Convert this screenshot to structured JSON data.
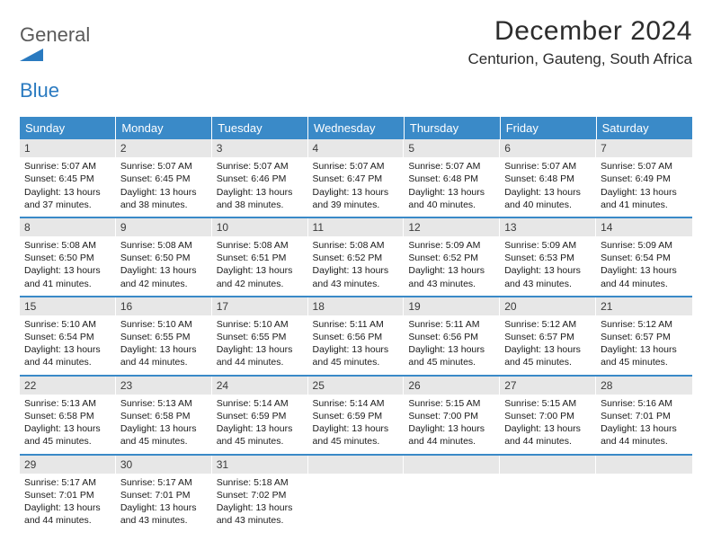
{
  "logo": {
    "general": "General",
    "blue": "Blue"
  },
  "title": "December 2024",
  "location": "Centurion, Gauteng, South Africa",
  "colors": {
    "header_bg": "#3a8ac8",
    "header_text": "#ffffff",
    "daynum_bg": "#e7e7e7",
    "row_border": "#3a8ac8",
    "logo_blue": "#2a7ac0",
    "logo_gray": "#5a5a5a"
  },
  "weekdays": [
    "Sunday",
    "Monday",
    "Tuesday",
    "Wednesday",
    "Thursday",
    "Friday",
    "Saturday"
  ],
  "labels": {
    "sunrise": "Sunrise:",
    "sunset": "Sunset:",
    "daylight": "Daylight:"
  },
  "weeks": [
    [
      {
        "n": "1",
        "sr": "5:07 AM",
        "ss": "6:45 PM",
        "dl": "13 hours and 37 minutes."
      },
      {
        "n": "2",
        "sr": "5:07 AM",
        "ss": "6:45 PM",
        "dl": "13 hours and 38 minutes."
      },
      {
        "n": "3",
        "sr": "5:07 AM",
        "ss": "6:46 PM",
        "dl": "13 hours and 38 minutes."
      },
      {
        "n": "4",
        "sr": "5:07 AM",
        "ss": "6:47 PM",
        "dl": "13 hours and 39 minutes."
      },
      {
        "n": "5",
        "sr": "5:07 AM",
        "ss": "6:48 PM",
        "dl": "13 hours and 40 minutes."
      },
      {
        "n": "6",
        "sr": "5:07 AM",
        "ss": "6:48 PM",
        "dl": "13 hours and 40 minutes."
      },
      {
        "n": "7",
        "sr": "5:07 AM",
        "ss": "6:49 PM",
        "dl": "13 hours and 41 minutes."
      }
    ],
    [
      {
        "n": "8",
        "sr": "5:08 AM",
        "ss": "6:50 PM",
        "dl": "13 hours and 41 minutes."
      },
      {
        "n": "9",
        "sr": "5:08 AM",
        "ss": "6:50 PM",
        "dl": "13 hours and 42 minutes."
      },
      {
        "n": "10",
        "sr": "5:08 AM",
        "ss": "6:51 PM",
        "dl": "13 hours and 42 minutes."
      },
      {
        "n": "11",
        "sr": "5:08 AM",
        "ss": "6:52 PM",
        "dl": "13 hours and 43 minutes."
      },
      {
        "n": "12",
        "sr": "5:09 AM",
        "ss": "6:52 PM",
        "dl": "13 hours and 43 minutes."
      },
      {
        "n": "13",
        "sr": "5:09 AM",
        "ss": "6:53 PM",
        "dl": "13 hours and 43 minutes."
      },
      {
        "n": "14",
        "sr": "5:09 AM",
        "ss": "6:54 PM",
        "dl": "13 hours and 44 minutes."
      }
    ],
    [
      {
        "n": "15",
        "sr": "5:10 AM",
        "ss": "6:54 PM",
        "dl": "13 hours and 44 minutes."
      },
      {
        "n": "16",
        "sr": "5:10 AM",
        "ss": "6:55 PM",
        "dl": "13 hours and 44 minutes."
      },
      {
        "n": "17",
        "sr": "5:10 AM",
        "ss": "6:55 PM",
        "dl": "13 hours and 44 minutes."
      },
      {
        "n": "18",
        "sr": "5:11 AM",
        "ss": "6:56 PM",
        "dl": "13 hours and 45 minutes."
      },
      {
        "n": "19",
        "sr": "5:11 AM",
        "ss": "6:56 PM",
        "dl": "13 hours and 45 minutes."
      },
      {
        "n": "20",
        "sr": "5:12 AM",
        "ss": "6:57 PM",
        "dl": "13 hours and 45 minutes."
      },
      {
        "n": "21",
        "sr": "5:12 AM",
        "ss": "6:57 PM",
        "dl": "13 hours and 45 minutes."
      }
    ],
    [
      {
        "n": "22",
        "sr": "5:13 AM",
        "ss": "6:58 PM",
        "dl": "13 hours and 45 minutes."
      },
      {
        "n": "23",
        "sr": "5:13 AM",
        "ss": "6:58 PM",
        "dl": "13 hours and 45 minutes."
      },
      {
        "n": "24",
        "sr": "5:14 AM",
        "ss": "6:59 PM",
        "dl": "13 hours and 45 minutes."
      },
      {
        "n": "25",
        "sr": "5:14 AM",
        "ss": "6:59 PM",
        "dl": "13 hours and 45 minutes."
      },
      {
        "n": "26",
        "sr": "5:15 AM",
        "ss": "7:00 PM",
        "dl": "13 hours and 44 minutes."
      },
      {
        "n": "27",
        "sr": "5:15 AM",
        "ss": "7:00 PM",
        "dl": "13 hours and 44 minutes."
      },
      {
        "n": "28",
        "sr": "5:16 AM",
        "ss": "7:01 PM",
        "dl": "13 hours and 44 minutes."
      }
    ],
    [
      {
        "n": "29",
        "sr": "5:17 AM",
        "ss": "7:01 PM",
        "dl": "13 hours and 44 minutes."
      },
      {
        "n": "30",
        "sr": "5:17 AM",
        "ss": "7:01 PM",
        "dl": "13 hours and 43 minutes."
      },
      {
        "n": "31",
        "sr": "5:18 AM",
        "ss": "7:02 PM",
        "dl": "13 hours and 43 minutes."
      },
      null,
      null,
      null,
      null
    ]
  ]
}
